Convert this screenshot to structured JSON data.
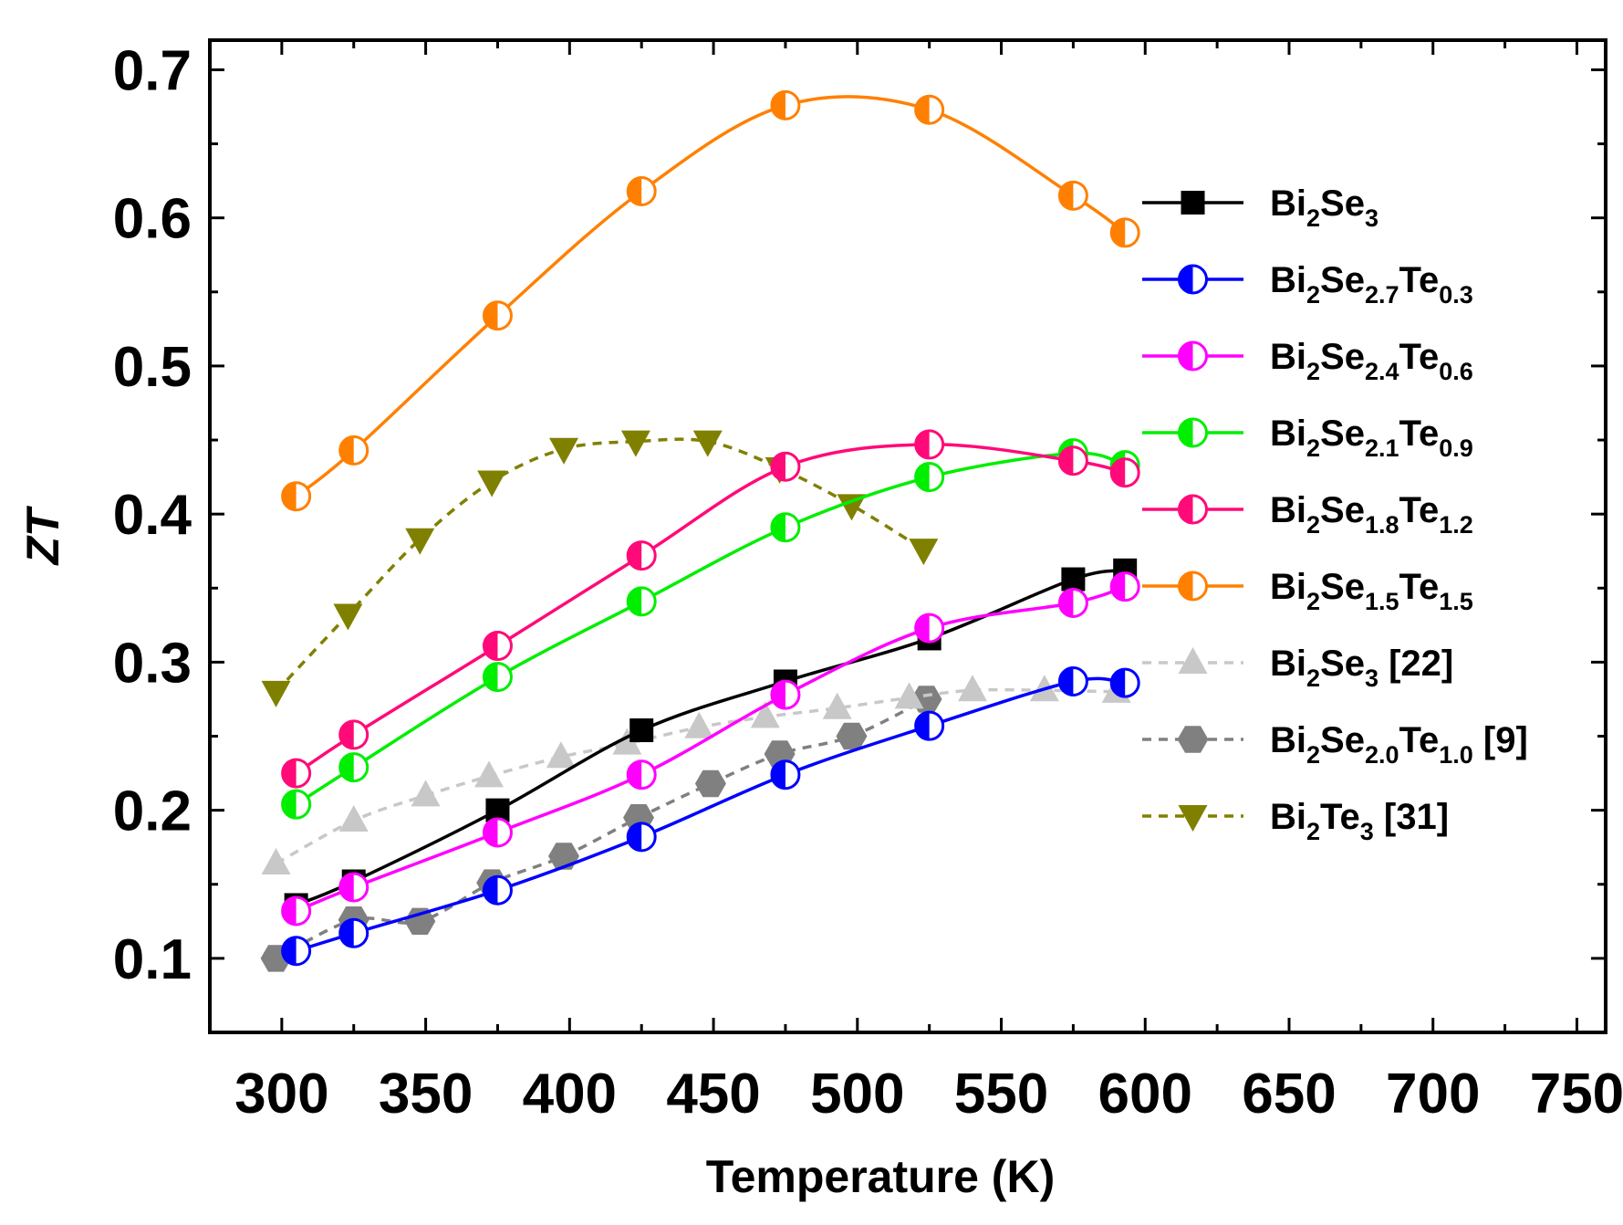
{
  "chart_data": {
    "type": "line",
    "xlabel": "Temperature (K)",
    "ylabel": "ZT",
    "xlim": [
      275,
      760
    ],
    "ylim": [
      0.05,
      0.72
    ],
    "xticks": [
      300,
      350,
      400,
      450,
      500,
      550,
      600,
      650,
      700,
      750
    ],
    "yticks": [
      0.1,
      0.2,
      0.3,
      0.4,
      0.5,
      0.6,
      0.7
    ],
    "xtick_labels": [
      "300",
      "350",
      "400",
      "450",
      "500",
      "550",
      "600",
      "650",
      "700",
      "750"
    ],
    "ytick_labels": [
      "0.1",
      "0.2",
      "0.3",
      "0.4",
      "0.5",
      "0.6",
      "0.7"
    ],
    "legend_position": "right",
    "series": [
      {
        "name": "Bi2Se3",
        "label_parts": [
          {
            "t": "Bi"
          },
          {
            "t": "2",
            "sub": true
          },
          {
            "t": "Se"
          },
          {
            "t": "3",
            "sub": true
          }
        ],
        "color": "#000000",
        "marker": "square",
        "dashed": false,
        "x": [
          305,
          325,
          375,
          425,
          475,
          525,
          575,
          593
        ],
        "y": [
          0.136,
          0.152,
          0.2,
          0.254,
          0.287,
          0.316,
          0.356,
          0.362
        ]
      },
      {
        "name": "Bi2Se2.7Te0.3",
        "label_parts": [
          {
            "t": "Bi"
          },
          {
            "t": "2",
            "sub": true
          },
          {
            "t": "Se"
          },
          {
            "t": "2.7",
            "sub": true
          },
          {
            "t": "Te"
          },
          {
            "t": "0.3",
            "sub": true
          }
        ],
        "color": "#0000ff",
        "marker": "half-circle",
        "dashed": false,
        "x": [
          305,
          325,
          375,
          425,
          475,
          525,
          575,
          593
        ],
        "y": [
          0.105,
          0.117,
          0.146,
          0.182,
          0.224,
          0.257,
          0.287,
          0.286
        ]
      },
      {
        "name": "Bi2Se2.4Te0.6",
        "label_parts": [
          {
            "t": "Bi"
          },
          {
            "t": "2",
            "sub": true
          },
          {
            "t": "Se"
          },
          {
            "t": "2.4",
            "sub": true
          },
          {
            "t": "Te"
          },
          {
            "t": "0.6",
            "sub": true
          }
        ],
        "color": "#ff00ff",
        "marker": "half-circle",
        "dashed": false,
        "x": [
          305,
          325,
          375,
          425,
          475,
          525,
          575,
          593
        ],
        "y": [
          0.132,
          0.148,
          0.185,
          0.224,
          0.278,
          0.323,
          0.34,
          0.351
        ]
      },
      {
        "name": "Bi2Se2.1Te0.9",
        "label_parts": [
          {
            "t": "Bi"
          },
          {
            "t": "2",
            "sub": true
          },
          {
            "t": "Se"
          },
          {
            "t": "2.1",
            "sub": true
          },
          {
            "t": "Te"
          },
          {
            "t": "0.9",
            "sub": true
          }
        ],
        "color": "#00ee00",
        "marker": "half-circle",
        "dashed": false,
        "x": [
          305,
          325,
          375,
          425,
          475,
          525,
          575,
          593
        ],
        "y": [
          0.204,
          0.229,
          0.29,
          0.341,
          0.391,
          0.425,
          0.441,
          0.433
        ]
      },
      {
        "name": "Bi2Se1.8Te1.2",
        "label_parts": [
          {
            "t": "Bi"
          },
          {
            "t": "2",
            "sub": true
          },
          {
            "t": "Se"
          },
          {
            "t": "1.8",
            "sub": true
          },
          {
            "t": "Te"
          },
          {
            "t": "1.2",
            "sub": true
          }
        ],
        "color": "#ff0a78",
        "marker": "half-circle",
        "dashed": false,
        "x": [
          305,
          325,
          375,
          425,
          475,
          525,
          575,
          593
        ],
        "y": [
          0.225,
          0.251,
          0.311,
          0.372,
          0.432,
          0.447,
          0.436,
          0.428
        ]
      },
      {
        "name": "Bi2Se1.5Te1.5",
        "label_parts": [
          {
            "t": "Bi"
          },
          {
            "t": "2",
            "sub": true
          },
          {
            "t": "Se"
          },
          {
            "t": "1.5",
            "sub": true
          },
          {
            "t": "Te"
          },
          {
            "t": "1.5",
            "sub": true
          }
        ],
        "color": "#ff8000",
        "marker": "half-circle",
        "dashed": false,
        "x": [
          305,
          325,
          375,
          425,
          475,
          525,
          575,
          593
        ],
        "y": [
          0.412,
          0.443,
          0.534,
          0.618,
          0.676,
          0.673,
          0.615,
          0.59
        ]
      },
      {
        "name": "Bi2Se3 [22]",
        "label_parts": [
          {
            "t": "Bi"
          },
          {
            "t": "2",
            "sub": true
          },
          {
            "t": "Se"
          },
          {
            "t": "3",
            "sub": true
          },
          {
            "t": " [22]"
          }
        ],
        "color": "#c8c8c8",
        "marker": "triangle-up",
        "dashed": true,
        "x": [
          298,
          325,
          350,
          372,
          397,
          420,
          445,
          468,
          493,
          518,
          540,
          565,
          590
        ],
        "y": [
          0.164,
          0.193,
          0.21,
          0.223,
          0.236,
          0.245,
          0.256,
          0.263,
          0.269,
          0.276,
          0.281,
          0.281,
          0.28
        ]
      },
      {
        "name": "Bi2Se2.0Te1.0 [9]",
        "label_parts": [
          {
            "t": "Bi"
          },
          {
            "t": "2",
            "sub": true
          },
          {
            "t": "Se"
          },
          {
            "t": "2.0",
            "sub": true
          },
          {
            "t": "Te"
          },
          {
            "t": "1.0",
            "sub": true
          },
          {
            "t": " [9]"
          }
        ],
        "color": "#808080",
        "marker": "hexagon",
        "dashed": true,
        "x": [
          298,
          325,
          348,
          373,
          398,
          424,
          449,
          473,
          498,
          524
        ],
        "y": [
          0.1,
          0.126,
          0.125,
          0.151,
          0.169,
          0.195,
          0.218,
          0.238,
          0.25,
          0.275
        ]
      },
      {
        "name": "Bi2Te3 [31]",
        "label_parts": [
          {
            "t": "Bi"
          },
          {
            "t": "2",
            "sub": true
          },
          {
            "t": "Te"
          },
          {
            "t": "3",
            "sub": true
          },
          {
            "t": " [31]"
          }
        ],
        "color": "#808000",
        "marker": "triangle-down",
        "dashed": true,
        "x": [
          298,
          323,
          348,
          373,
          398,
          423,
          448,
          473,
          498,
          523
        ],
        "y": [
          0.28,
          0.332,
          0.383,
          0.422,
          0.444,
          0.449,
          0.449,
          0.431,
          0.406,
          0.376
        ]
      }
    ]
  }
}
